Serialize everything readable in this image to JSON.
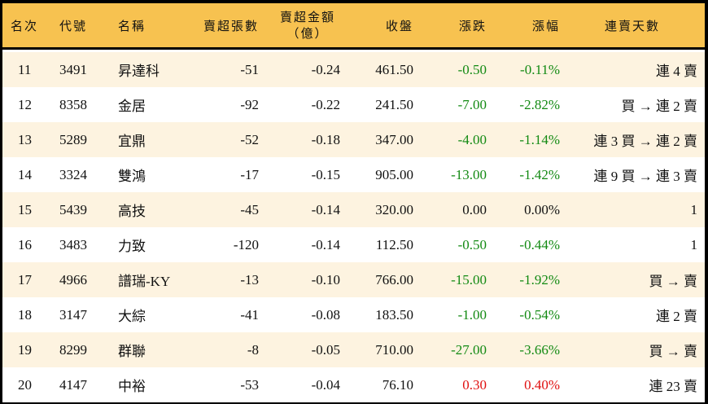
{
  "headers": {
    "rank": "名次",
    "code": "代號",
    "name": "名稱",
    "shares": "賣超張數",
    "amount": "賣超金額",
    "amount_unit": "（億）",
    "close": "收盤",
    "change": "漲跌",
    "pct": "漲幅",
    "streak": "連賣天數"
  },
  "colors": {
    "header": "#F7C250",
    "odd": "#FDF3E0",
    "down": "#138a13",
    "up": "#e01010"
  },
  "rows": [
    {
      "rank": "11",
      "code": "3491",
      "name": "昇達科",
      "shares": "-51",
      "amount": "-0.24",
      "close": "461.50",
      "change": "-0.50",
      "pct": "-0.11%",
      "streak": "連 4 賣",
      "dir": "down"
    },
    {
      "rank": "12",
      "code": "8358",
      "name": "金居",
      "shares": "-92",
      "amount": "-0.22",
      "close": "241.50",
      "change": "-7.00",
      "pct": "-2.82%",
      "streak": "買 → 連 2 賣",
      "dir": "down"
    },
    {
      "rank": "13",
      "code": "5289",
      "name": "宜鼎",
      "shares": "-52",
      "amount": "-0.18",
      "close": "347.00",
      "change": "-4.00",
      "pct": "-1.14%",
      "streak": "連 3 買 → 連 2 賣",
      "dir": "down"
    },
    {
      "rank": "14",
      "code": "3324",
      "name": "雙鴻",
      "shares": "-17",
      "amount": "-0.15",
      "close": "905.00",
      "change": "-13.00",
      "pct": "-1.42%",
      "streak": "連 9 買 → 連 3 賣",
      "dir": "down"
    },
    {
      "rank": "15",
      "code": "5439",
      "name": "高技",
      "shares": "-45",
      "amount": "-0.14",
      "close": "320.00",
      "change": "0.00",
      "pct": "0.00%",
      "streak": "1",
      "dir": "flat"
    },
    {
      "rank": "16",
      "code": "3483",
      "name": "力致",
      "shares": "-120",
      "amount": "-0.14",
      "close": "112.50",
      "change": "-0.50",
      "pct": "-0.44%",
      "streak": "1",
      "dir": "down"
    },
    {
      "rank": "17",
      "code": "4966",
      "name": "譜瑞-KY",
      "shares": "-13",
      "amount": "-0.10",
      "close": "766.00",
      "change": "-15.00",
      "pct": "-1.92%",
      "streak": "買 → 賣",
      "dir": "down"
    },
    {
      "rank": "18",
      "code": "3147",
      "name": "大綜",
      "shares": "-41",
      "amount": "-0.08",
      "close": "183.50",
      "change": "-1.00",
      "pct": "-0.54%",
      "streak": "連 2 賣",
      "dir": "down"
    },
    {
      "rank": "19",
      "code": "8299",
      "name": "群聯",
      "shares": "-8",
      "amount": "-0.05",
      "close": "710.00",
      "change": "-27.00",
      "pct": "-3.66%",
      "streak": "買 → 賣",
      "dir": "down"
    },
    {
      "rank": "20",
      "code": "4147",
      "name": "中裕",
      "shares": "-53",
      "amount": "-0.04",
      "close": "76.10",
      "change": "0.30",
      "pct": "0.40%",
      "streak": "連 23 賣",
      "dir": "up"
    }
  ]
}
